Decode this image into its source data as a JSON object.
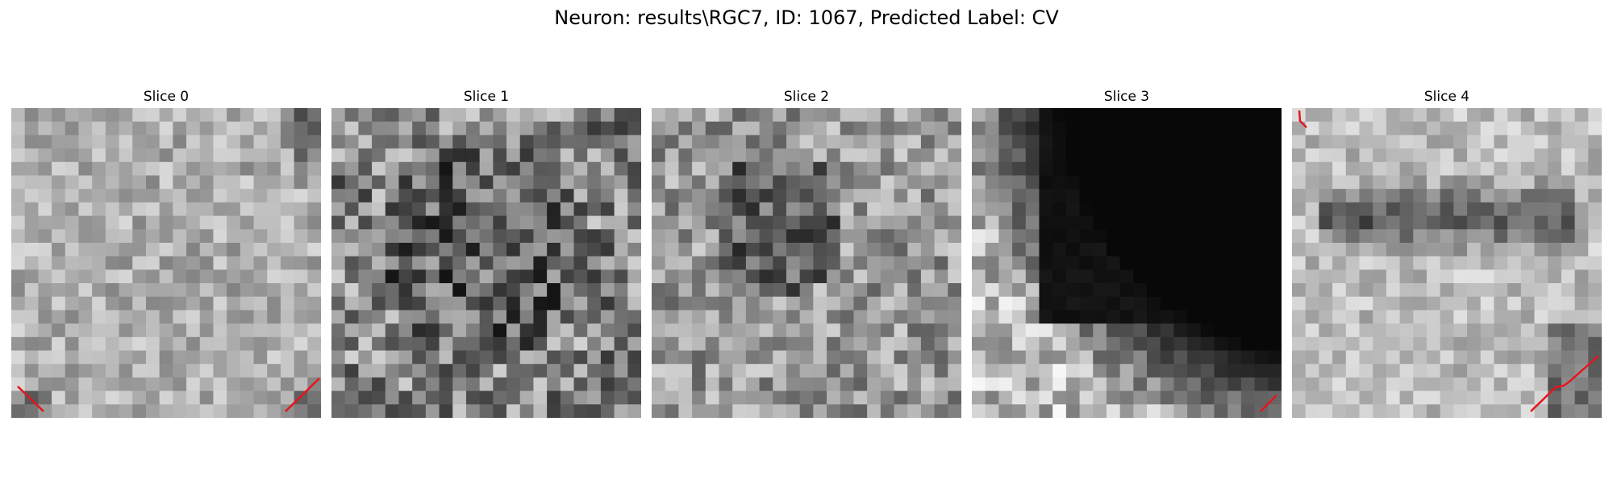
{
  "figure": {
    "title": "Neuron: results\\RGC7, ID: 1067, Predicted Label: CV"
  },
  "panels": [
    {
      "title": "Slice 0"
    },
    {
      "title": "Slice 1"
    },
    {
      "title": "Slice 2"
    },
    {
      "title": "Slice 3"
    },
    {
      "title": "Slice 4"
    }
  ],
  "colors": {
    "background": "#ffffff",
    "contour": "#e8141c",
    "text": "#000000"
  }
}
